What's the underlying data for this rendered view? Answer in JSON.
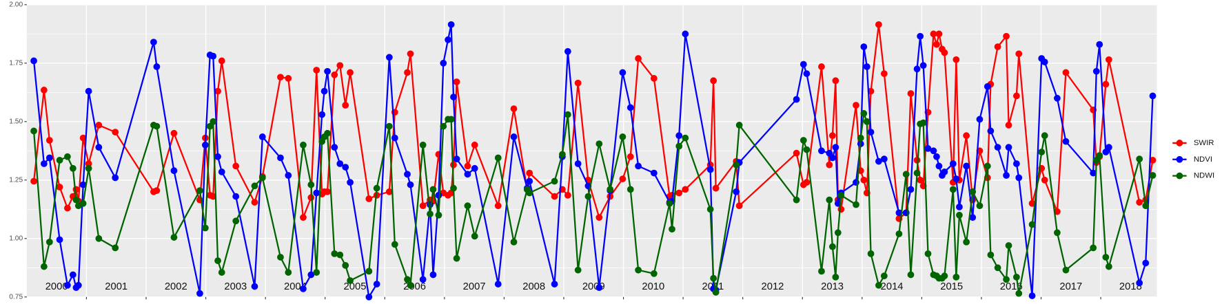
{
  "chart_data": {
    "type": "line",
    "x": [
      2000.118,
      2000.289,
      2000.381,
      2000.551,
      2000.682,
      2000.774,
      2000.827,
      2000.866,
      2000.945,
      2001.037,
      2001.207,
      2001.483,
      2002.126,
      2002.178,
      2002.467,
      2002.9,
      2002.992,
      2003.071,
      2003.123,
      2003.202,
      2003.268,
      2003.504,
      2003.819,
      2003.95,
      2004.252,
      2004.383,
      2004.633,
      2004.764,
      2004.856,
      2004.948,
      2004.987,
      2005.039,
      2005.157,
      2005.249,
      2005.341,
      2005.42,
      2005.735,
      2005.866,
      2006.076,
      2006.168,
      2006.378,
      2006.43,
      2006.64,
      2006.759,
      2006.811,
      2006.903,
      2006.982,
      2007.06,
      2007.113,
      2007.152,
      2007.205,
      2007.388,
      2007.507,
      2007.9,
      2008.163,
      2008.386,
      2008.425,
      2008.845,
      2008.976,
      2009.068,
      2009.239,
      2009.409,
      2009.593,
      2009.777,
      2009.987,
      2010.118,
      2010.249,
      2010.512,
      2010.774,
      2010.814,
      2010.932,
      2011.037,
      2011.457,
      2011.509,
      2011.549,
      2011.89,
      2011.942,
      2012.9,
      2013.018,
      2013.071,
      2013.32,
      2013.451,
      2013.504,
      2013.556,
      2013.596,
      2013.648,
      2013.898,
      2013.976,
      2014.029,
      2014.081,
      2014.147,
      2014.278,
      2014.37,
      2014.619,
      2014.738,
      2014.816,
      2014.921,
      2014.974,
      2015.026,
      2015.105,
      2015.197,
      2015.249,
      2015.289,
      2015.341,
      2015.381,
      2015.525,
      2015.577,
      2015.63,
      2015.748,
      2015.853,
      2015.971,
      2016.102,
      2016.155,
      2016.273,
      2016.417,
      2016.457,
      2016.588,
      2016.627,
      2016.85,
      2017.008,
      2017.06,
      2017.27,
      2017.415,
      2017.874,
      2017.927,
      2017.979,
      2018.084,
      2018.136,
      2018.648,
      2018.753,
      2018.871
    ],
    "series": [
      {
        "name": "SWIR",
        "color": "#ff0000",
        "values": [
          1.245,
          1.635,
          1.42,
          1.22,
          1.13,
          1.18,
          1.21,
          1.16,
          1.43,
          1.32,
          1.485,
          1.455,
          1.2,
          1.205,
          1.45,
          1.165,
          1.43,
          1.185,
          1.18,
          1.63,
          1.76,
          1.31,
          1.155,
          1.265,
          1.69,
          1.685,
          1.09,
          1.175,
          1.72,
          1.19,
          1.2,
          1.2,
          1.7,
          1.74,
          1.57,
          1.71,
          1.17,
          1.185,
          1.2,
          1.54,
          1.71,
          1.79,
          1.14,
          1.165,
          1.16,
          1.36,
          1.195,
          1.185,
          1.195,
          1.315,
          1.67,
          1.31,
          1.4,
          1.14,
          1.555,
          1.21,
          1.28,
          1.18,
          1.21,
          1.185,
          1.665,
          1.25,
          1.09,
          1.18,
          1.255,
          1.35,
          1.77,
          1.685,
          1.18,
          1.185,
          1.195,
          1.21,
          1.315,
          1.675,
          1.215,
          1.33,
          1.14,
          1.365,
          1.23,
          1.24,
          1.735,
          1.315,
          1.44,
          1.675,
          1.165,
          1.125,
          1.57,
          1.29,
          1.25,
          1.195,
          1.63,
          1.915,
          1.705,
          1.085,
          1.11,
          1.62,
          1.335,
          1.25,
          1.225,
          1.54,
          1.875,
          1.83,
          1.875,
          1.81,
          1.795,
          1.24,
          1.765,
          1.25,
          1.44,
          1.165,
          1.375,
          1.26,
          1.66,
          1.82,
          1.865,
          1.485,
          1.61,
          1.79,
          1.15,
          1.3,
          1.25,
          1.115,
          1.71,
          1.55,
          1.325,
          1.35,
          1.66,
          1.765,
          1.155,
          1.165,
          1.335
        ]
      },
      {
        "name": "NDVI",
        "color": "#0000ff",
        "values": [
          1.76,
          1.32,
          1.345,
          0.995,
          0.8,
          0.845,
          0.79,
          0.8,
          1.23,
          1.63,
          1.39,
          1.26,
          1.84,
          1.735,
          1.29,
          0.765,
          1.4,
          1.785,
          1.78,
          1.35,
          1.285,
          1.18,
          0.795,
          1.435,
          1.345,
          1.27,
          0.785,
          0.845,
          1.195,
          1.53,
          1.63,
          1.715,
          1.39,
          1.32,
          1.305,
          1.24,
          0.75,
          0.805,
          1.775,
          1.43,
          1.275,
          1.23,
          0.825,
          1.145,
          0.845,
          1.185,
          1.75,
          1.85,
          1.915,
          1.605,
          1.34,
          1.275,
          1.3,
          0.805,
          1.435,
          1.215,
          1.245,
          0.805,
          1.35,
          1.8,
          1.32,
          1.225,
          0.79,
          1.205,
          1.71,
          1.56,
          1.31,
          1.28,
          1.155,
          1.16,
          1.44,
          1.875,
          1.295,
          0.785,
          0.78,
          1.2,
          1.325,
          1.595,
          1.745,
          1.705,
          1.375,
          1.365,
          1.345,
          1.39,
          1.15,
          1.195,
          1.24,
          1.405,
          1.82,
          1.735,
          1.455,
          1.33,
          1.34,
          1.11,
          1.11,
          1.21,
          1.725,
          1.865,
          1.74,
          1.385,
          1.375,
          1.35,
          1.31,
          1.27,
          1.285,
          1.32,
          1.255,
          1.135,
          1.31,
          1.09,
          1.51,
          1.65,
          1.46,
          1.39,
          1.27,
          1.39,
          1.32,
          1.26,
          0.755,
          1.77,
          1.755,
          1.6,
          1.415,
          1.28,
          1.715,
          1.83,
          1.37,
          1.39,
          0.81,
          0.895,
          1.61
        ]
      },
      {
        "name": "NDWI",
        "color": "#006400",
        "values": [
          1.46,
          0.88,
          0.985,
          1.335,
          1.35,
          1.3,
          1.165,
          1.14,
          1.15,
          1.3,
          1.0,
          0.96,
          1.485,
          1.48,
          1.005,
          1.205,
          1.045,
          1.48,
          1.5,
          0.905,
          0.855,
          1.075,
          1.225,
          1.26,
          0.92,
          0.855,
          1.4,
          1.23,
          0.855,
          1.415,
          1.435,
          1.45,
          0.935,
          0.93,
          0.885,
          0.82,
          0.86,
          1.215,
          1.48,
          0.975,
          0.825,
          0.8,
          1.4,
          1.105,
          1.21,
          1.1,
          1.48,
          1.51,
          1.51,
          1.215,
          0.915,
          1.14,
          1.01,
          1.345,
          0.985,
          1.21,
          1.195,
          1.245,
          1.36,
          1.53,
          0.865,
          1.18,
          1.405,
          1.21,
          1.435,
          1.21,
          0.865,
          0.85,
          1.15,
          1.04,
          1.395,
          1.43,
          1.125,
          0.83,
          0.77,
          1.315,
          1.485,
          1.165,
          1.42,
          1.38,
          0.86,
          1.165,
          0.965,
          0.835,
          1.025,
          1.185,
          1.145,
          1.43,
          1.535,
          1.5,
          0.935,
          0.8,
          0.84,
          1.02,
          1.275,
          0.845,
          1.28,
          1.49,
          1.495,
          0.935,
          0.845,
          0.84,
          0.83,
          0.83,
          0.84,
          1.21,
          0.835,
          1.1,
          0.985,
          1.2,
          1.14,
          1.31,
          0.93,
          0.875,
          0.825,
          0.97,
          0.835,
          0.765,
          1.06,
          1.37,
          1.44,
          1.025,
          0.865,
          0.96,
          1.335,
          1.355,
          0.92,
          0.88,
          1.34,
          1.14,
          1.27
        ]
      }
    ],
    "annotations": [
      {
        "text": "2000",
        "x": 2000.5
      },
      {
        "text": "2001",
        "x": 2001.5
      },
      {
        "text": "2002",
        "x": 2002.5
      },
      {
        "text": "2003",
        "x": 2003.5
      },
      {
        "text": "2004",
        "x": 2004.5
      },
      {
        "text": "2005",
        "x": 2005.5
      },
      {
        "text": "2006",
        "x": 2006.5
      },
      {
        "text": "2007",
        "x": 2007.5
      },
      {
        "text": "2008",
        "x": 2008.5
      },
      {
        "text": "2009",
        "x": 2009.5
      },
      {
        "text": "2010",
        "x": 2010.5
      },
      {
        "text": "2011",
        "x": 2011.5
      },
      {
        "text": "2012",
        "x": 2012.5
      },
      {
        "text": "2013",
        "x": 2013.5
      },
      {
        "text": "2014",
        "x": 2014.5
      },
      {
        "text": "2015",
        "x": 2015.5
      },
      {
        "text": "2016",
        "x": 2016.5
      },
      {
        "text": "2017",
        "x": 2017.5
      },
      {
        "text": "2018",
        "x": 2018.5
      }
    ],
    "xlim": [
      2000,
      2018.94
    ],
    "xticks": [
      2001,
      2002,
      2003,
      2004,
      2005,
      2006,
      2007,
      2008,
      2009,
      2010,
      2011,
      2012,
      2013,
      2014,
      2015,
      2016,
      2017,
      2018
    ],
    "ylim": [
      0.75,
      2.0
    ],
    "yticks": [
      0.75,
      {
        "value": 1.0,
        "label": "1.00"
      },
      1.25,
      {
        "value": 1.5,
        "label": "1.50"
      },
      1.75,
      {
        "value": 2.0,
        "label": "2.00"
      }
    ],
    "yminor": [
      0.875,
      1.125,
      1.375,
      1.625,
      1.875
    ],
    "grid": true,
    "legend": "right"
  }
}
